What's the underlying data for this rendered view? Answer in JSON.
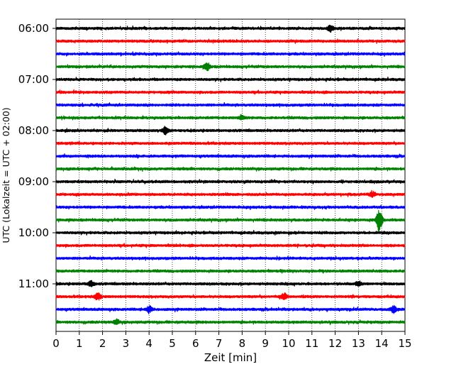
{
  "chart_data": {
    "type": "line",
    "title": "",
    "xlabel": "Zeit  [min]",
    "ylabel": "UTC (Lokalzeit = UTC + 02:00)",
    "xlim": [
      0,
      15
    ],
    "x_ticks": [
      0,
      1,
      2,
      3,
      4,
      5,
      6,
      7,
      8,
      9,
      10,
      11,
      12,
      13,
      14,
      15
    ],
    "x_tick_labels": [
      "0",
      "1",
      "2",
      "3",
      "4",
      "5",
      "6",
      "7",
      "8",
      "9",
      "10",
      "11",
      "12",
      "13",
      "14",
      "15"
    ],
    "y_tick_labels": [
      "06:00",
      "07:00",
      "08:00",
      "09:00",
      "10:00",
      "11:00"
    ],
    "y_tick_rows": [
      0,
      4,
      8,
      12,
      16,
      20
    ],
    "grid": "vertical dotted at each minute",
    "trace_colors": [
      "#000000",
      "#ff0000",
      "#0000ff",
      "#008000"
    ],
    "traces": [
      {
        "label": "06:00",
        "color": "black",
        "events": [
          {
            "t": 11.8,
            "amp": 0.8
          }
        ]
      },
      {
        "label": "06:15",
        "color": "red",
        "events": []
      },
      {
        "label": "06:30",
        "color": "blue",
        "events": []
      },
      {
        "label": "06:45",
        "color": "green",
        "events": [
          {
            "t": 6.5,
            "amp": 1.0
          }
        ]
      },
      {
        "label": "07:00",
        "color": "black",
        "events": []
      },
      {
        "label": "07:15",
        "color": "red",
        "events": []
      },
      {
        "label": "07:30",
        "color": "blue",
        "events": []
      },
      {
        "label": "07:45",
        "color": "green",
        "events": [
          {
            "t": 8.0,
            "amp": 0.5
          }
        ]
      },
      {
        "label": "08:00",
        "color": "black",
        "events": [
          {
            "t": 4.7,
            "amp": 1.0
          }
        ]
      },
      {
        "label": "08:15",
        "color": "red",
        "events": []
      },
      {
        "label": "08:30",
        "color": "blue",
        "events": []
      },
      {
        "label": "08:45",
        "color": "green",
        "events": []
      },
      {
        "label": "09:00",
        "color": "black",
        "events": []
      },
      {
        "label": "09:15",
        "color": "red",
        "events": [
          {
            "t": 13.6,
            "amp": 0.6
          }
        ]
      },
      {
        "label": "09:30",
        "color": "blue",
        "events": []
      },
      {
        "label": "09:45",
        "color": "green",
        "events": [
          {
            "t": 13.9,
            "amp": 3.2
          }
        ]
      },
      {
        "label": "10:00",
        "color": "black",
        "events": []
      },
      {
        "label": "10:15",
        "color": "red",
        "events": []
      },
      {
        "label": "10:30",
        "color": "blue",
        "events": []
      },
      {
        "label": "10:45",
        "color": "green",
        "events": []
      },
      {
        "label": "11:00",
        "color": "black",
        "events": [
          {
            "t": 1.5,
            "amp": 0.8
          },
          {
            "t": 13.0,
            "amp": 0.7
          }
        ]
      },
      {
        "label": "11:15",
        "color": "red",
        "events": [
          {
            "t": 1.8,
            "amp": 1.0
          },
          {
            "t": 9.8,
            "amp": 0.9
          }
        ]
      },
      {
        "label": "11:30",
        "color": "blue",
        "events": [
          {
            "t": 4.0,
            "amp": 0.9
          },
          {
            "t": 14.5,
            "amp": 0.9
          }
        ]
      },
      {
        "label": "11:45",
        "color": "green",
        "events": [
          {
            "t": 2.6,
            "amp": 0.6
          }
        ]
      }
    ]
  }
}
